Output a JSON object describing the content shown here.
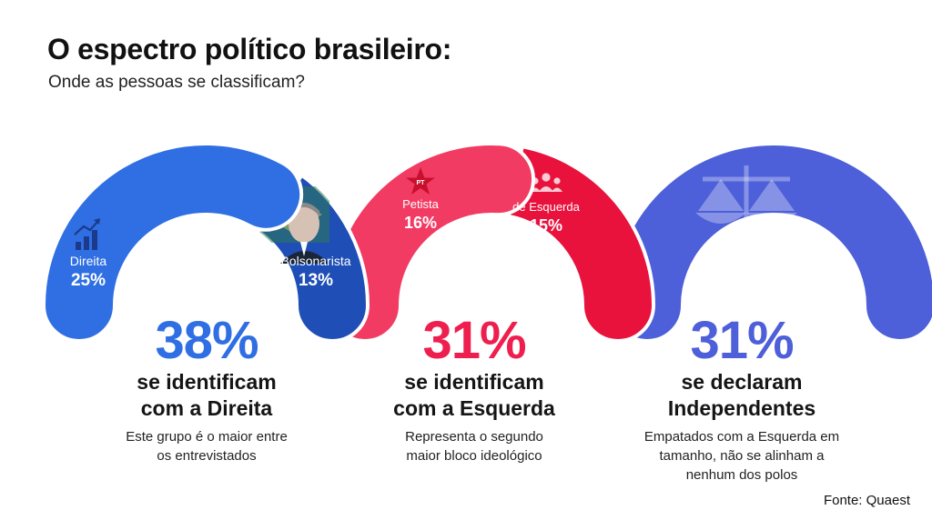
{
  "header": {
    "title": "O espectro político brasileiro:",
    "subtitle": "Onde as pessoas se classificam?"
  },
  "colors": {
    "right_main": "#2f6fe3",
    "right_bolsonarista": "#1f4fb6",
    "left_petista": "#f23b63",
    "left_esquerda": "#e8123c",
    "independent": "#4d5fd9",
    "white": "#ffffff"
  },
  "chart_data": {
    "type": "pie",
    "title": "O espectro político brasileiro:",
    "subtitle": "Onde as pessoas se classificam?",
    "groups": [
      {
        "key": "direita",
        "total": 38,
        "total_label": "38%",
        "heading_line1": "se identificam",
        "heading_line2": "com a Direita",
        "description": [
          "Este grupo é o maior entre",
          "os entrevistados"
        ],
        "segments": [
          {
            "label": "Direita",
            "value": 25,
            "value_label": "25%",
            "icon": "chart-growth-icon"
          },
          {
            "label": "Bolsonarista",
            "value": 13,
            "value_label": "13%",
            "icon": "bolsonaro-portrait-icon"
          }
        ]
      },
      {
        "key": "esquerda",
        "total": 31,
        "total_label": "31%",
        "heading_line1": "se identificam",
        "heading_line2": "com a Esquerda",
        "description": [
          "Representa o segundo",
          "maior bloco ideológico"
        ],
        "segments": [
          {
            "label": "Petista",
            "value": 16,
            "value_label": "16%",
            "icon": "pt-star-icon"
          },
          {
            "label": "de Esquerda",
            "value": 15,
            "value_label": "15%",
            "icon": "people-group-icon"
          }
        ]
      },
      {
        "key": "independentes",
        "total": 31,
        "total_label": "31%",
        "heading_line1": "se declaram",
        "heading_line2": "Independentes",
        "description": [
          "Empatados com a Esquerda em",
          "tamanho, não se alinham a",
          "nenhum dos polos"
        ],
        "segments": [
          {
            "label": "Independentes",
            "value": 31,
            "icon": "scales-icon"
          }
        ]
      }
    ]
  },
  "footer": {
    "source": "Fonte: Quaest"
  }
}
